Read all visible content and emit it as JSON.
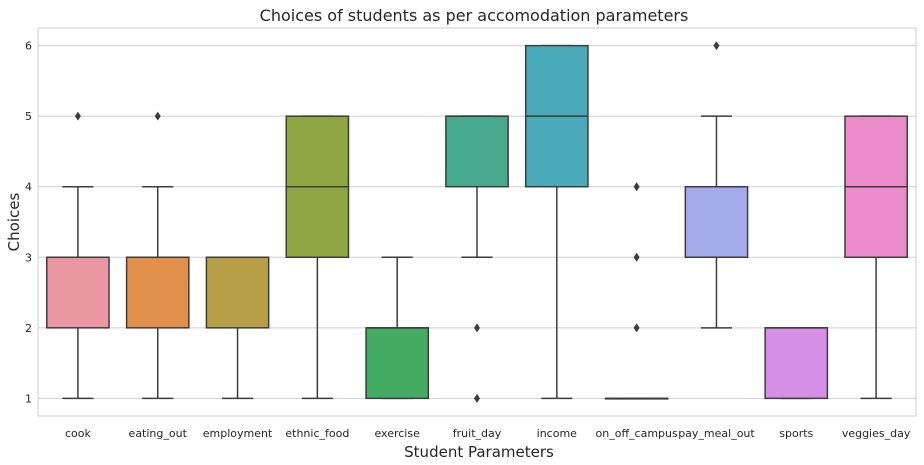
{
  "chart_data": {
    "type": "box",
    "title": "Choices of students as per accomodation parameters",
    "xlabel": "Student Parameters",
    "ylabel": "Choices",
    "ylim": [
      0.75,
      6.25
    ],
    "yticks": [
      1,
      2,
      3,
      4,
      5,
      6
    ],
    "grid": "horizontal",
    "categories": [
      "cook",
      "eating_out",
      "employment",
      "ethnic_food",
      "exercise",
      "fruit_day",
      "income",
      "on_off_campus",
      "pay_meal_out",
      "sports",
      "veggies_day"
    ],
    "series": [
      {
        "category": "cook",
        "color": "#ea96a3",
        "whisker_low": 1,
        "q1": 2,
        "median": 3,
        "q3": 3,
        "whisker_high": 4,
        "outliers": [
          5
        ]
      },
      {
        "category": "eating_out",
        "color": "#e1914b",
        "whisker_low": 1,
        "q1": 2,
        "median": 3,
        "q3": 3,
        "whisker_high": 4,
        "outliers": [
          5
        ]
      },
      {
        "category": "employment",
        "color": "#b89e47",
        "whisker_low": 1,
        "q1": 2,
        "median": 3,
        "q3": 3,
        "whisker_high": 3,
        "outliers": []
      },
      {
        "category": "ethnic_food",
        "color": "#8ea642",
        "whisker_low": 1,
        "q1": 3,
        "median": 4,
        "q3": 5,
        "whisker_high": 5,
        "outliers": []
      },
      {
        "category": "exercise",
        "color": "#44ab62",
        "whisker_low": 1,
        "q1": 1,
        "median": 2,
        "q3": 2,
        "whisker_high": 3,
        "outliers": []
      },
      {
        "category": "fruit_day",
        "color": "#47aa8f",
        "whisker_low": 3,
        "q1": 4,
        "median": 5,
        "q3": 5,
        "whisker_high": 5,
        "outliers": [
          2,
          1
        ]
      },
      {
        "category": "income",
        "color": "#4aa9b8",
        "whisker_low": 1,
        "q1": 4,
        "median": 5,
        "q3": 6,
        "whisker_high": 6,
        "outliers": []
      },
      {
        "category": "on_off_campus",
        "color": "#4aa9b8",
        "whisker_low": 1,
        "q1": 1,
        "median": 1,
        "q3": 1,
        "whisker_high": 1,
        "outliers": [
          2,
          3,
          4
        ]
      },
      {
        "category": "pay_meal_out",
        "color": "#a5aaeb",
        "whisker_low": 2,
        "q1": 3,
        "median": 3,
        "q3": 4,
        "whisker_high": 5,
        "outliers": [
          6
        ]
      },
      {
        "category": "sports",
        "color": "#d590e5",
        "whisker_low": 1,
        "q1": 1,
        "median": 2,
        "q3": 2,
        "whisker_high": 2,
        "outliers": []
      },
      {
        "category": "veggies_day",
        "color": "#ec8bc9",
        "whisker_low": 1,
        "q1": 3,
        "median": 4,
        "q3": 5,
        "whisker_high": 5,
        "outliers": []
      }
    ]
  }
}
